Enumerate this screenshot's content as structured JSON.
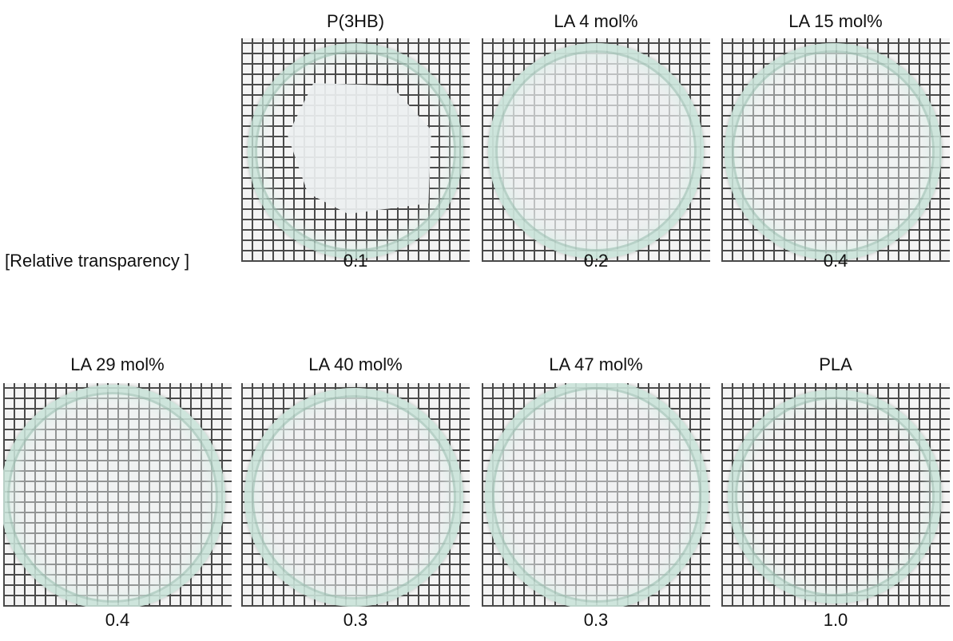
{
  "row_label": "[Relative transparency ]",
  "samples": [
    {
      "name": "P(3HB)",
      "transparency": "0.1",
      "film_opacity": 0.93
    },
    {
      "name": "LA 4 mol%",
      "transparency": "0.2",
      "film_opacity": 0.72
    },
    {
      "name": "LA 15 mol%",
      "transparency": "0.4",
      "film_opacity": 0.45
    },
    {
      "name": "LA 29 mol%",
      "transparency": "0.4",
      "film_opacity": 0.45
    },
    {
      "name": "LA 40 mol%",
      "transparency": "0.3",
      "film_opacity": 0.55
    },
    {
      "name": "LA 47 mol%",
      "transparency": "0.3",
      "film_opacity": 0.55
    },
    {
      "name": "PLA",
      "transparency": "1.0",
      "film_opacity": 0.08
    }
  ],
  "colors": {
    "grid_line": "#4a4a4a",
    "grid_paper": "#f4f4f4",
    "dish_glass": "#c4e2d6",
    "film": "#eceff0"
  }
}
